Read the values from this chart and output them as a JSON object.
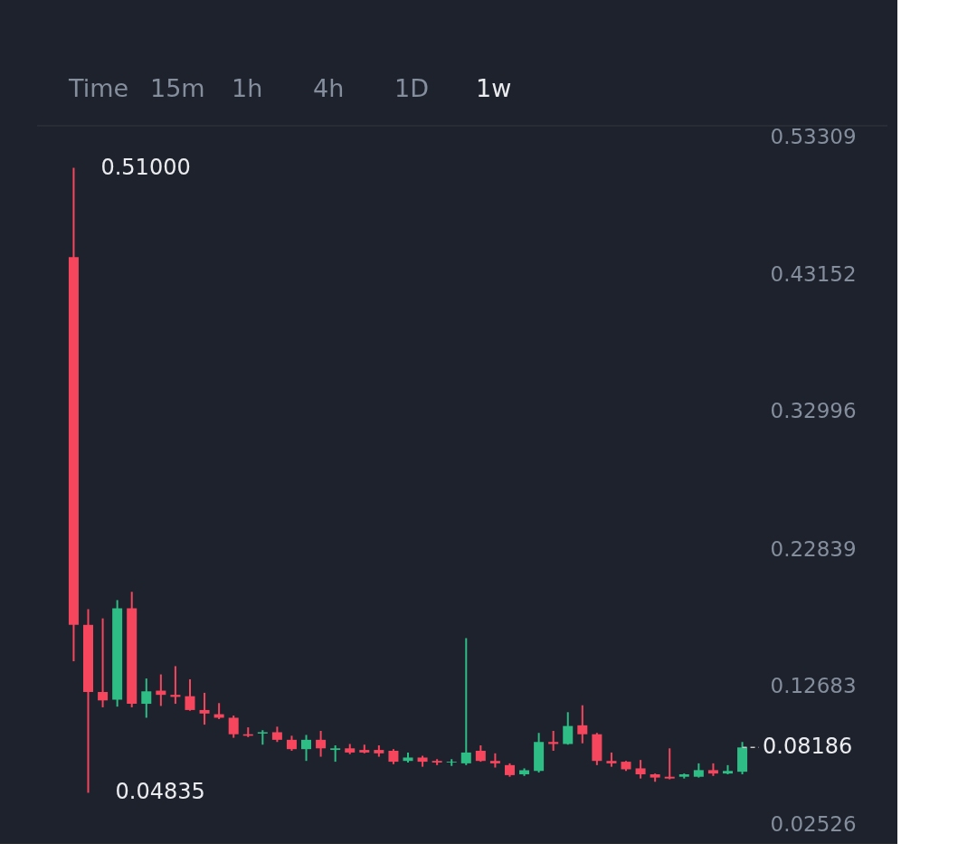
{
  "chart_data": {
    "type": "candlestick",
    "categories": [
      null,
      null,
      null,
      null,
      null,
      null,
      null,
      null,
      null,
      null,
      null,
      null,
      null,
      null,
      null,
      null,
      null,
      null,
      null,
      null,
      null,
      null,
      null,
      null,
      null,
      null,
      null,
      null,
      null,
      null,
      null,
      null,
      null,
      null,
      null,
      null,
      null,
      null,
      null,
      null,
      null,
      null,
      null,
      null,
      null,
      null,
      null
    ],
    "ohlc": [
      [
        0.4441,
        0.51,
        0.1456,
        0.1724
      ],
      [
        0.1724,
        0.184,
        0.04835,
        0.1228
      ],
      [
        0.1228,
        0.1772,
        0.1115,
        0.1166
      ],
      [
        0.1171,
        0.1907,
        0.112,
        0.1846
      ],
      [
        0.1846,
        0.1968,
        0.1115,
        0.1141
      ],
      [
        0.1141,
        0.1328,
        0.1038,
        0.1233
      ],
      [
        0.1238,
        0.1358,
        0.1125,
        0.1207
      ],
      [
        0.1207,
        0.1419,
        0.1141,
        0.1192
      ],
      [
        0.1197,
        0.1322,
        0.109,
        0.1095
      ],
      [
        0.1095,
        0.1222,
        0.0987,
        0.1069
      ],
      [
        0.1064,
        0.1146,
        0.1028,
        0.1038
      ],
      [
        0.1038,
        0.1054,
        0.089,
        0.0916
      ],
      [
        0.0916,
        0.0967,
        0.0895,
        0.0905
      ],
      [
        0.0921,
        0.0946,
        0.0839,
        0.0931
      ],
      [
        0.0931,
        0.0972,
        0.0859,
        0.0875
      ],
      [
        0.0875,
        0.0905,
        0.0794,
        0.0806
      ],
      [
        0.0806,
        0.0911,
        0.0719,
        0.0875
      ],
      [
        0.0875,
        0.0941,
        0.075,
        0.0812
      ],
      [
        0.08,
        0.0834,
        0.0713,
        0.0812
      ],
      [
        0.0812,
        0.0844,
        0.0769,
        0.0781
      ],
      [
        0.08,
        0.0839,
        0.0775,
        0.0781
      ],
      [
        0.08,
        0.0834,
        0.075,
        0.0775
      ],
      [
        0.0794,
        0.0806,
        0.0695,
        0.0713
      ],
      [
        0.0719,
        0.0781,
        0.0707,
        0.0744
      ],
      [
        0.0744,
        0.0757,
        0.0676,
        0.0713
      ],
      [
        0.0719,
        0.0732,
        0.0688,
        0.0707
      ],
      [
        0.0707,
        0.0732,
        0.0682,
        0.0713
      ],
      [
        0.0701,
        0.1626,
        0.0688,
        0.0781
      ],
      [
        0.0794,
        0.0834,
        0.0713,
        0.0719
      ],
      [
        0.0719,
        0.0775,
        0.067,
        0.0701
      ],
      [
        0.0688,
        0.0701,
        0.0602,
        0.0614
      ],
      [
        0.062,
        0.0664,
        0.0608,
        0.0651
      ],
      [
        0.0645,
        0.0926,
        0.0633,
        0.0859
      ],
      [
        0.0859,
        0.0941,
        0.0794,
        0.0844
      ],
      [
        0.0844,
        0.1079,
        0.0839,
        0.0977
      ],
      [
        0.0982,
        0.113,
        0.0849,
        0.0916
      ],
      [
        0.0916,
        0.0926,
        0.0688,
        0.0719
      ],
      [
        0.0719,
        0.0781,
        0.0676,
        0.0701
      ],
      [
        0.0713,
        0.0719,
        0.0645,
        0.0657
      ],
      [
        0.0664,
        0.0726,
        0.0589,
        0.062
      ],
      [
        0.062,
        0.0626,
        0.0565,
        0.0596
      ],
      [
        0.0602,
        0.0812,
        0.0583,
        0.0589
      ],
      [
        0.0602,
        0.0626,
        0.0589,
        0.062
      ],
      [
        0.0602,
        0.0701,
        0.0596,
        0.0651
      ],
      [
        0.0651,
        0.0701,
        0.0608,
        0.0626
      ],
      [
        0.0626,
        0.0688,
        0.062,
        0.0645
      ],
      [
        0.0639,
        0.0859,
        0.062,
        0.08186
      ]
    ],
    "colors": [
      "#f6465d",
      "#f6465d",
      "#f6465d",
      "#2ebd85",
      "#f6465d",
      "#2ebd85",
      "#f6465d",
      "#f6465d",
      "#f6465d",
      "#f6465d",
      "#f6465d",
      "#f6465d",
      "#f6465d",
      "#2ebd85",
      "#f6465d",
      "#f6465d",
      "#2ebd85",
      "#f6465d",
      "#2ebd85",
      "#f6465d",
      "#f6465d",
      "#f6465d",
      "#f6465d",
      "#2ebd85",
      "#f6465d",
      "#f6465d",
      "#2ebd85",
      "#2ebd85",
      "#f6465d",
      "#f6465d",
      "#f6465d",
      "#2ebd85",
      "#2ebd85",
      "#f6465d",
      "#2ebd85",
      "#f6465d",
      "#f6465d",
      "#f6465d",
      "#f6465d",
      "#f6465d",
      "#f6465d",
      "#f6465d",
      "#2ebd85",
      "#2ebd85",
      "#f6465d",
      "#2ebd85",
      "#2ebd85"
    ],
    "ylim": [
      0.02526,
      0.53309
    ],
    "yticks": [
      0.02526,
      0.12683,
      0.22839,
      0.32996,
      0.43152,
      0.53309
    ],
    "ref_lines": [
      {
        "axis": "y",
        "value": 0.08186,
        "label": "0.08186",
        "line_style": "dashed",
        "color": "#c8c8c8"
      }
    ],
    "annotations": [
      "Time",
      "15m",
      "1h",
      "4h",
      "1D",
      "1w",
      "0.51000",
      "0.04835"
    ],
    "tick_labels": "y",
    "grid": false
  }
}
